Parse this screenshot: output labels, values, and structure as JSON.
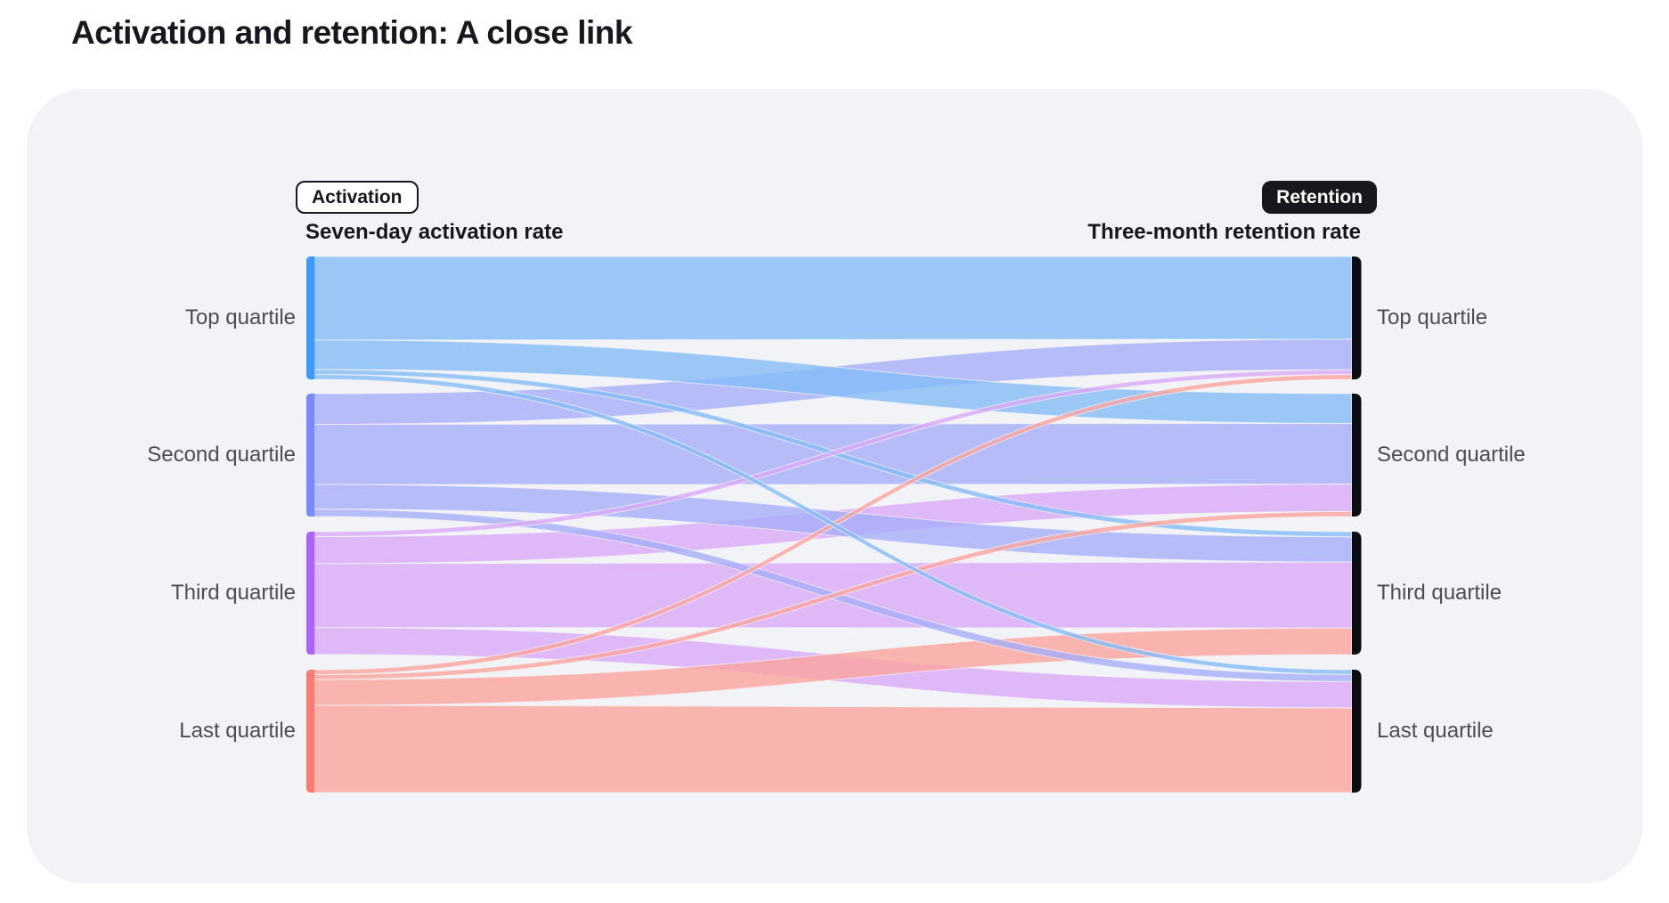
{
  "page": {
    "title": "Activation and retention: A close link"
  },
  "colors": {
    "page_bg": "#FFFFFF",
    "card_bg": "#F2F3F6",
    "title_text": "#17181D",
    "node_label_text": "#4A4D53",
    "right_node_bar": "#0B0D12",
    "badge_outline_border": "#17181D",
    "badge_solid_bg": "#16181D",
    "badge_solid_text": "#FFFFFF",
    "flow_opacity": 0.8
  },
  "chart": {
    "activation_badge": "Activation",
    "retention_badge": "Retention",
    "activation_axis_label": "Seven-day activation rate",
    "retention_axis_label": "Three-month retention rate"
  },
  "chart_data": {
    "type": "sankey",
    "title": "Activation and retention: A close link",
    "left_axis_title": "Seven-day activation rate",
    "right_axis_title": "Three-month retention rate",
    "value_unit": "percent of quartile cohort (estimated from band thickness)",
    "left_nodes": [
      {
        "label": "Top quartile",
        "strip_color": "#3E9AF8",
        "flow_color": "#85BCF8"
      },
      {
        "label": "Second quartile",
        "strip_color": "#7A8AFA",
        "flow_color": "#A5AEF8"
      },
      {
        "label": "Third quartile",
        "strip_color": "#AB63F8",
        "flow_color": "#D8A9F8"
      },
      {
        "label": "Last quartile",
        "strip_color": "#F87C71",
        "flow_color": "#FAA49D"
      }
    ],
    "right_nodes": [
      {
        "label": "Top quartile"
      },
      {
        "label": "Second quartile"
      },
      {
        "label": "Third quartile"
      },
      {
        "label": "Last quartile"
      }
    ],
    "links": [
      {
        "source": "Top quartile",
        "target": "Top quartile",
        "value": 68
      },
      {
        "source": "Top quartile",
        "target": "Second quartile",
        "value": 24
      },
      {
        "source": "Top quartile",
        "target": "Third quartile",
        "value": 4
      },
      {
        "source": "Top quartile",
        "target": "Last quartile",
        "value": 4
      },
      {
        "source": "Second quartile",
        "target": "Top quartile",
        "value": 25
      },
      {
        "source": "Second quartile",
        "target": "Second quartile",
        "value": 49
      },
      {
        "source": "Second quartile",
        "target": "Third quartile",
        "value": 20
      },
      {
        "source": "Second quartile",
        "target": "Last quartile",
        "value": 6
      },
      {
        "source": "Third quartile",
        "target": "Top quartile",
        "value": 4
      },
      {
        "source": "Third quartile",
        "target": "Second quartile",
        "value": 22
      },
      {
        "source": "Third quartile",
        "target": "Third quartile",
        "value": 52
      },
      {
        "source": "Third quartile",
        "target": "Last quartile",
        "value": 22
      },
      {
        "source": "Last quartile",
        "target": "Top quartile",
        "value": 4
      },
      {
        "source": "Last quartile",
        "target": "Second quartile",
        "value": 4
      },
      {
        "source": "Last quartile",
        "target": "Third quartile",
        "value": 21
      },
      {
        "source": "Last quartile",
        "target": "Last quartile",
        "value": 71
      }
    ]
  }
}
